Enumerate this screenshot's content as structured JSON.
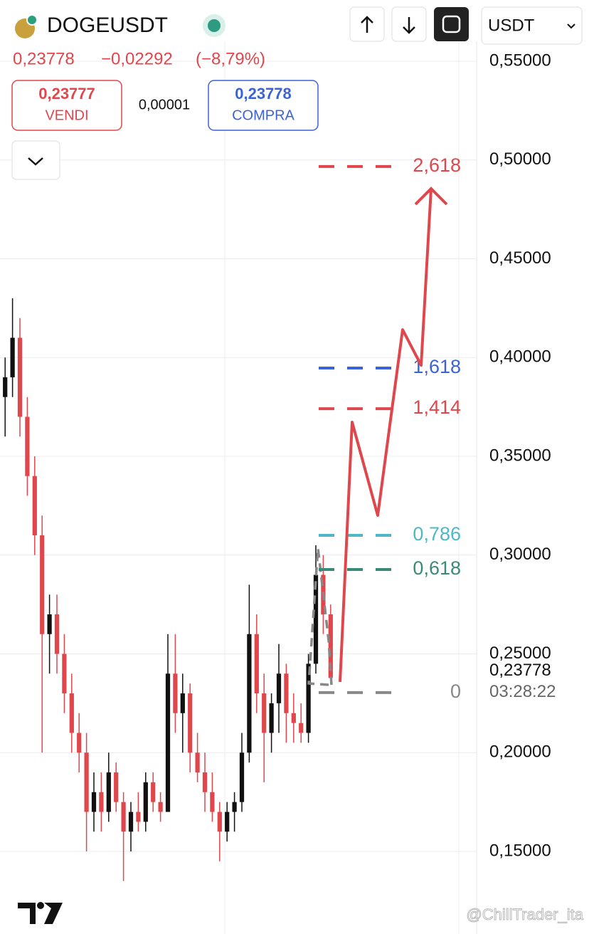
{
  "header": {
    "symbol": "DOGEUSDT",
    "last": "0,23778",
    "change": "−0,02292",
    "change_pct": "(−8,79%)",
    "sell_price": "0,23777",
    "sell_label": "VENDI",
    "spread": "0,00001",
    "buy_price": "0,23778",
    "buy_label": "COMPRA",
    "currency": "USDT"
  },
  "chart_data": {
    "type": "candlestick",
    "up_color": "#111111",
    "down_color": "#e0474c",
    "ylim": [
      0.13,
      0.56
    ],
    "yticks": [
      {
        "value": 0.55,
        "label": "0,55000"
      },
      {
        "value": 0.5,
        "label": "0,50000"
      },
      {
        "value": 0.45,
        "label": "0,45000"
      },
      {
        "value": 0.4,
        "label": "0,40000"
      },
      {
        "value": 0.35,
        "label": "0,35000"
      },
      {
        "value": 0.3,
        "label": "0,30000"
      },
      {
        "value": 0.25,
        "label": "0,25000"
      },
      {
        "value": 0.2,
        "label": "0,20000"
      },
      {
        "value": 0.15,
        "label": "0,15000"
      }
    ],
    "grid": true,
    "last_price": {
      "value": 0.23778,
      "label": "0,23778"
    },
    "countdown": "03:28:22",
    "open": [
      0.38,
      0.39,
      0.41,
      0.37,
      0.34,
      0.31,
      0.26,
      0.27,
      0.25,
      0.23,
      0.21,
      0.2,
      0.17,
      0.18,
      0.17,
      0.19,
      0.175,
      0.16,
      0.17,
      0.165,
      0.185,
      0.175,
      0.17,
      0.24,
      0.22,
      0.23,
      0.2,
      0.19,
      0.18,
      0.17,
      0.16,
      0.17,
      0.175,
      0.2,
      0.26,
      0.23,
      0.21,
      0.225,
      0.24,
      0.22,
      0.215,
      0.21,
      0.245,
      0.29,
      0.27
    ],
    "high": [
      0.4,
      0.43,
      0.42,
      0.38,
      0.35,
      0.32,
      0.28,
      0.28,
      0.26,
      0.24,
      0.22,
      0.21,
      0.19,
      0.19,
      0.2,
      0.195,
      0.18,
      0.175,
      0.18,
      0.19,
      0.19,
      0.18,
      0.26,
      0.26,
      0.24,
      0.235,
      0.21,
      0.2,
      0.19,
      0.175,
      0.175,
      0.18,
      0.21,
      0.285,
      0.27,
      0.24,
      0.23,
      0.255,
      0.245,
      0.23,
      0.225,
      0.25,
      0.305,
      0.3,
      0.275
    ],
    "low": [
      0.36,
      0.38,
      0.36,
      0.33,
      0.3,
      0.2,
      0.24,
      0.24,
      0.22,
      0.2,
      0.19,
      0.15,
      0.16,
      0.16,
      0.165,
      0.17,
      0.135,
      0.15,
      0.16,
      0.16,
      0.17,
      0.165,
      0.17,
      0.21,
      0.2,
      0.19,
      0.185,
      0.17,
      0.165,
      0.145,
      0.155,
      0.16,
      0.17,
      0.195,
      0.22,
      0.185,
      0.2,
      0.21,
      0.205,
      0.205,
      0.205,
      0.205,
      0.24,
      0.26,
      0.235
    ],
    "close": [
      0.39,
      0.41,
      0.37,
      0.34,
      0.31,
      0.26,
      0.27,
      0.25,
      0.23,
      0.21,
      0.2,
      0.17,
      0.18,
      0.17,
      0.19,
      0.175,
      0.16,
      0.17,
      0.165,
      0.185,
      0.175,
      0.17,
      0.24,
      0.22,
      0.23,
      0.2,
      0.19,
      0.18,
      0.17,
      0.16,
      0.17,
      0.175,
      0.2,
      0.26,
      0.23,
      0.21,
      0.225,
      0.24,
      0.22,
      0.215,
      0.21,
      0.245,
      0.29,
      0.27,
      0.2378
    ],
    "fib_levels": [
      {
        "label": "2,618",
        "value": 0.4967,
        "color": "#e0474c"
      },
      {
        "label": "1,618",
        "value": 0.3947,
        "color": "#3b63d8"
      },
      {
        "label": "1,414",
        "value": 0.3741,
        "color": "#e0474c"
      },
      {
        "label": "0,786",
        "value": 0.31,
        "color": "#4fb8c4"
      },
      {
        "label": "0,618",
        "value": 0.2927,
        "color": "#3a8a7a"
      },
      {
        "label": "0",
        "value": 0.2304,
        "color": "#888888"
      }
    ],
    "projection": {
      "color": "#e0474c",
      "values": [
        0.2358,
        0.3673,
        0.3201,
        0.4141,
        0.3961,
        0.4855
      ]
    }
  },
  "watermark": "@ChillTrader_ita"
}
